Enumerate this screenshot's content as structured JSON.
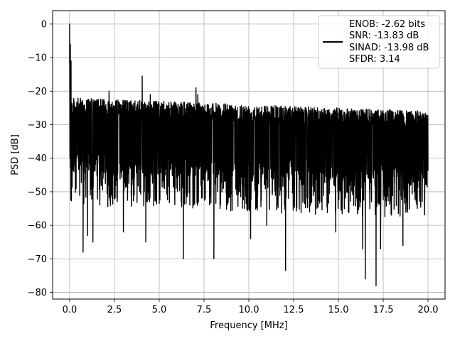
{
  "chart_data": {
    "type": "line",
    "title": "",
    "xlabel": "Frequency [MHz]",
    "ylabel": "PSD [dB]",
    "xlim": [
      -0.95,
      20.95
    ],
    "ylim": [
      -82,
      4
    ],
    "xticks": [
      0.0,
      2.5,
      5.0,
      7.5,
      10.0,
      12.5,
      15.0,
      17.5,
      20.0
    ],
    "xtick_labels": [
      "0.0",
      "2.5",
      "5.0",
      "7.5",
      "10.0",
      "12.5",
      "15.0",
      "17.5",
      "20.0"
    ],
    "yticks": [
      0,
      -10,
      -20,
      -30,
      -40,
      -50,
      -60,
      -70,
      -80
    ],
    "ytick_labels": [
      "0",
      "−10",
      "−20",
      "−30",
      "−40",
      "−50",
      "−60",
      "−70",
      "−80"
    ],
    "grid": true,
    "legend_position": "top-right",
    "series": [
      {
        "name": "ENOB: -2.62 bits\nSNR: -13.83 dB\nSINAD: -13.98 dB\nSFDR: 3.14",
        "color": "#000000",
        "x_range": [
          0,
          20
        ],
        "floor_upper_db": [
          -22,
          -26
        ],
        "floor_lower_db": [
          -44,
          -48
        ],
        "deep_dips": [
          {
            "x": 0.75,
            "y": -68
          },
          {
            "x": 1.0,
            "y": -63
          },
          {
            "x": 1.3,
            "y": -65
          },
          {
            "x": 3.0,
            "y": -62
          },
          {
            "x": 4.25,
            "y": -65
          },
          {
            "x": 6.35,
            "y": -70
          },
          {
            "x": 7.05,
            "y": -64
          },
          {
            "x": 8.05,
            "y": -70
          },
          {
            "x": 10.1,
            "y": -64
          },
          {
            "x": 11.0,
            "y": -60
          },
          {
            "x": 12.05,
            "y": -73.5
          },
          {
            "x": 14.85,
            "y": -62
          },
          {
            "x": 16.35,
            "y": -67
          },
          {
            "x": 16.5,
            "y": -76
          },
          {
            "x": 17.1,
            "y": -78
          },
          {
            "x": 17.35,
            "y": -67
          },
          {
            "x": 18.6,
            "y": -66
          }
        ],
        "spurs": [
          {
            "x": 0.0,
            "y": 0
          },
          {
            "x": 0.04,
            "y": -6
          },
          {
            "x": 0.08,
            "y": -11
          },
          {
            "x": 2.2,
            "y": -20
          },
          {
            "x": 4.05,
            "y": -15.5
          },
          {
            "x": 4.5,
            "y": -21
          },
          {
            "x": 7.05,
            "y": -19
          },
          {
            "x": 7.15,
            "y": -21
          }
        ]
      }
    ],
    "legend": {
      "lines": [
        "ENOB: -2.62 bits",
        "SNR: -13.83 dB",
        "SINAD: -13.98 dB",
        "SFDR: 3.14"
      ]
    }
  }
}
